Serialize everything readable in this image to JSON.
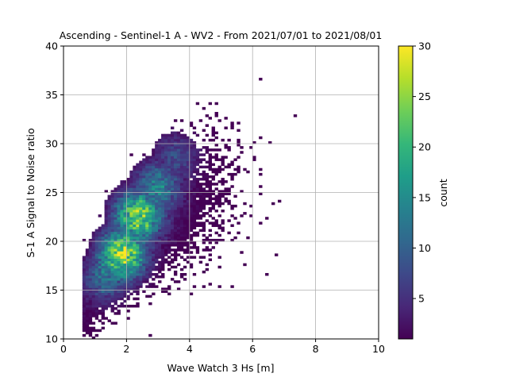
{
  "chart_data": {
    "type": "heatmap",
    "title": "Ascending - Sentinel-1 A - WV2 - From 2021/07/01 to 2021/08/01",
    "xlabel": "Wave Watch 3 Hs [m]",
    "ylabel": "S-1 A Signal to Noise ratio",
    "xlim": [
      0,
      10
    ],
    "ylim": [
      10,
      40
    ],
    "xticks": [
      "0",
      "2",
      "4",
      "6",
      "8",
      "10"
    ],
    "yticks": [
      "10",
      "15",
      "20",
      "25",
      "30",
      "35",
      "40"
    ],
    "grid": true,
    "bin_size": {
      "x": 0.1,
      "y": 0.25
    },
    "colorbar": {
      "label": "count",
      "colormap": "viridis",
      "range": [
        1,
        30
      ],
      "ticks": [
        "5",
        "10",
        "15",
        "20",
        "25",
        "30"
      ]
    },
    "density_peaks": [
      {
        "x": 1.8,
        "y": 18.5,
        "count": 27
      },
      {
        "x": 2.3,
        "y": 22.5,
        "count": 25
      },
      {
        "x": 2.9,
        "y": 25.5,
        "count": 14
      },
      {
        "x": 3.5,
        "y": 28.5,
        "count": 8
      },
      {
        "x": 1.3,
        "y": 16.5,
        "count": 12
      }
    ]
  },
  "colors": {
    "grid": "#b0b0b0",
    "axes": "#000000",
    "viridis_stops": [
      "#440154",
      "#482878",
      "#3e4989",
      "#31688e",
      "#26828e",
      "#1f9e89",
      "#35b779",
      "#6ece58",
      "#b5de2b",
      "#fde725"
    ]
  }
}
